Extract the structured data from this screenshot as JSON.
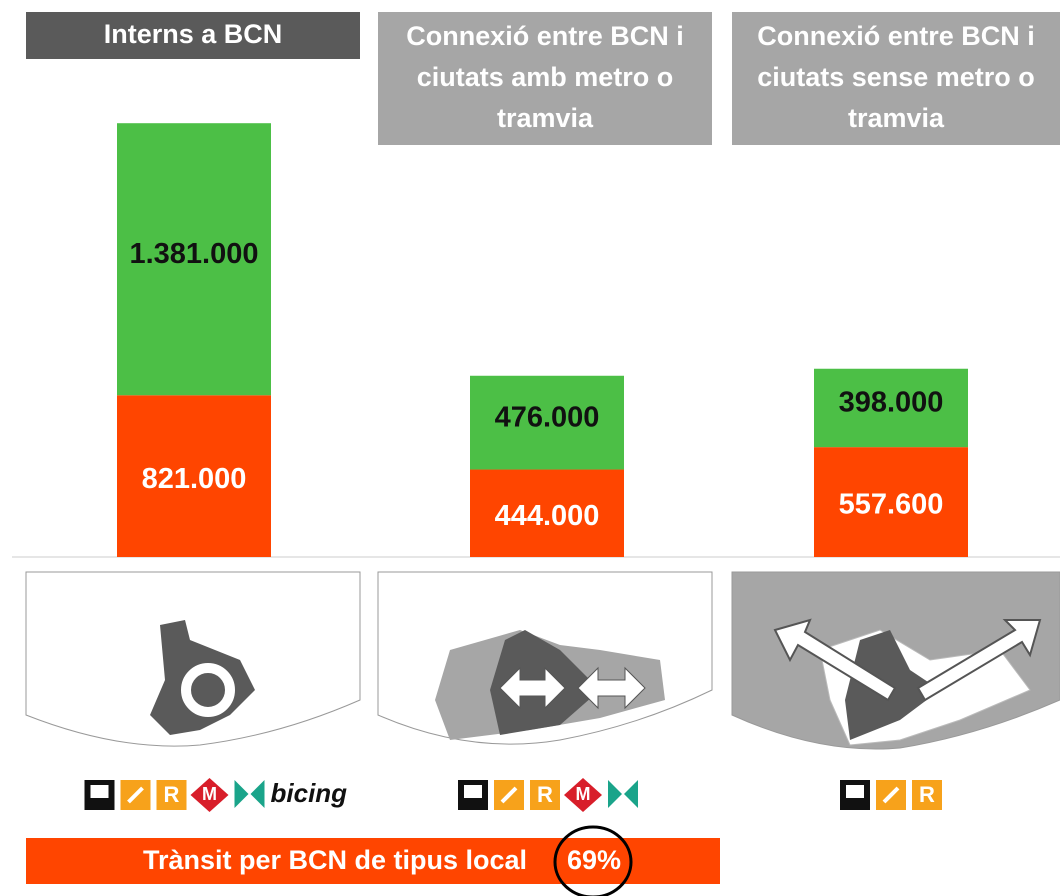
{
  "chart_data": {
    "type": "stacked_bar",
    "categories": [
      "Interns a BCN",
      "Connexió entre BCN i ciutats amb metro o tramvia",
      "Connexió entre BCN i ciutats sense metro o tramvia"
    ],
    "series": [
      {
        "color": "#ff4500",
        "values": [
          821000,
          444000,
          557600
        ],
        "value_labels": [
          "821.000",
          "444.000",
          "557.600"
        ]
      },
      {
        "color": "#4cbf46",
        "values": [
          1381000,
          476000,
          398000
        ],
        "value_labels": [
          "1.381.000",
          "476.000",
          "398.000"
        ]
      }
    ],
    "icon_rows": [
      [
        "R",
        "M",
        "bicing"
      ],
      [
        "R",
        "M"
      ],
      [
        "R"
      ]
    ],
    "footer": "Trànsit per BCN de tipus local",
    "footer_share": "69%"
  }
}
